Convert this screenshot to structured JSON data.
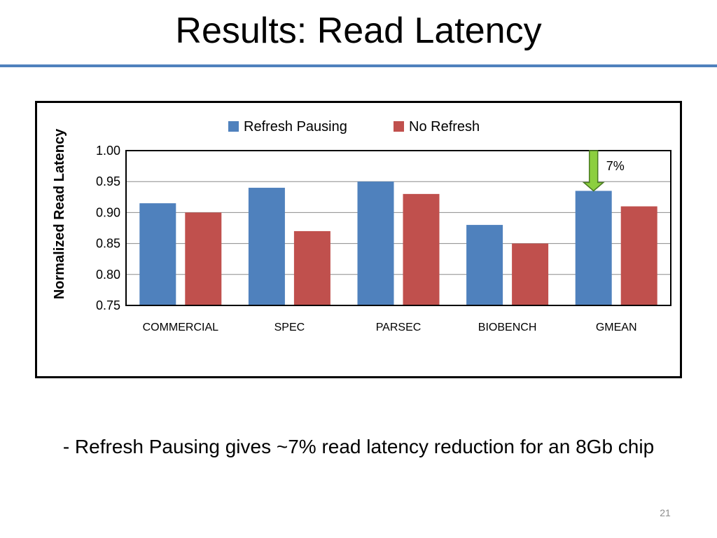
{
  "slide": {
    "title": "Results: Read Latency",
    "caption": "- Refresh Pausing gives ~7% read latency reduction for an 8Gb chip",
    "page_number": "21"
  },
  "chart_data": {
    "type": "bar",
    "title": "",
    "xlabel": "",
    "ylabel": "Normalized Read Latency",
    "ylim": [
      0.75,
      1.0
    ],
    "yticks": [
      "0.75",
      "0.80",
      "0.85",
      "0.90",
      "0.95",
      "1.00"
    ],
    "categories": [
      "COMMERCIAL",
      "SPEC",
      "PARSEC",
      "BIOBENCH",
      "GMEAN"
    ],
    "series": [
      {
        "name": "Refresh Pausing",
        "color": "#4f81bd",
        "values": [
          0.915,
          0.94,
          0.95,
          0.88,
          0.935
        ]
      },
      {
        "name": "No Refresh",
        "color": "#c0504d",
        "values": [
          0.9,
          0.87,
          0.93,
          0.85,
          0.91
        ]
      }
    ],
    "grid": true,
    "legend": "top",
    "annotation": {
      "text": "7%",
      "category": "GMEAN",
      "series": "Refresh Pausing",
      "from_value": 1.0,
      "to_value": 0.935,
      "color": "#8ccf3f"
    }
  }
}
